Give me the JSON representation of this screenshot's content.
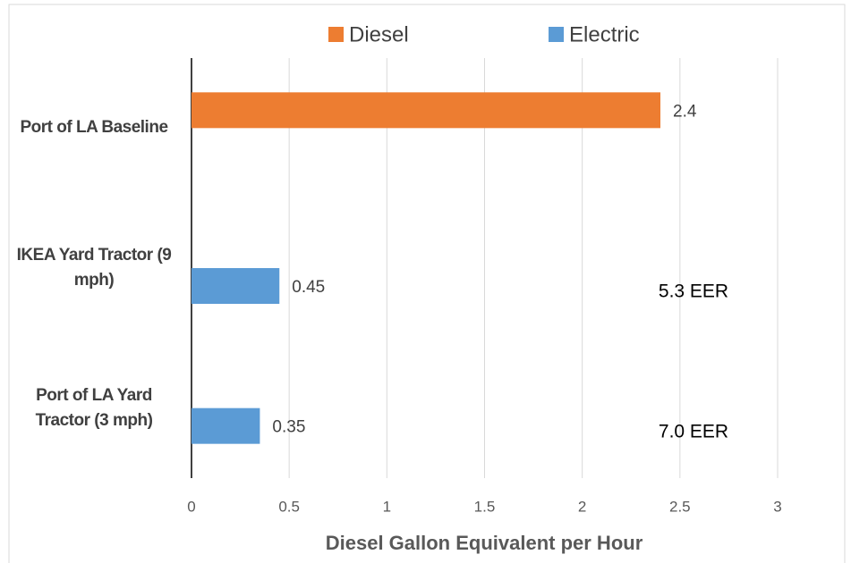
{
  "chart_data": {
    "type": "bar",
    "orientation": "horizontal",
    "categories": [
      "Port of LA Baseline",
      "IKEA Yard Tractor (9 mph)",
      "Port of LA Yard Tractor (3 mph)"
    ],
    "series": [
      {
        "name": "Diesel",
        "color": "#ed7d31",
        "values": [
          2.4,
          null,
          null
        ]
      },
      {
        "name": "Electric",
        "color": "#5b9bd5",
        "values": [
          null,
          0.45,
          0.35
        ]
      }
    ],
    "xlabel": "Diesel Gallon Equivalent per Hour",
    "xlim": [
      0,
      3
    ],
    "xticks": [
      0,
      0.5,
      1,
      1.5,
      2,
      2.5,
      3
    ],
    "grid": true,
    "legend": "top",
    "annotations": [
      "5.3 EER",
      "7.0 EER"
    ]
  }
}
